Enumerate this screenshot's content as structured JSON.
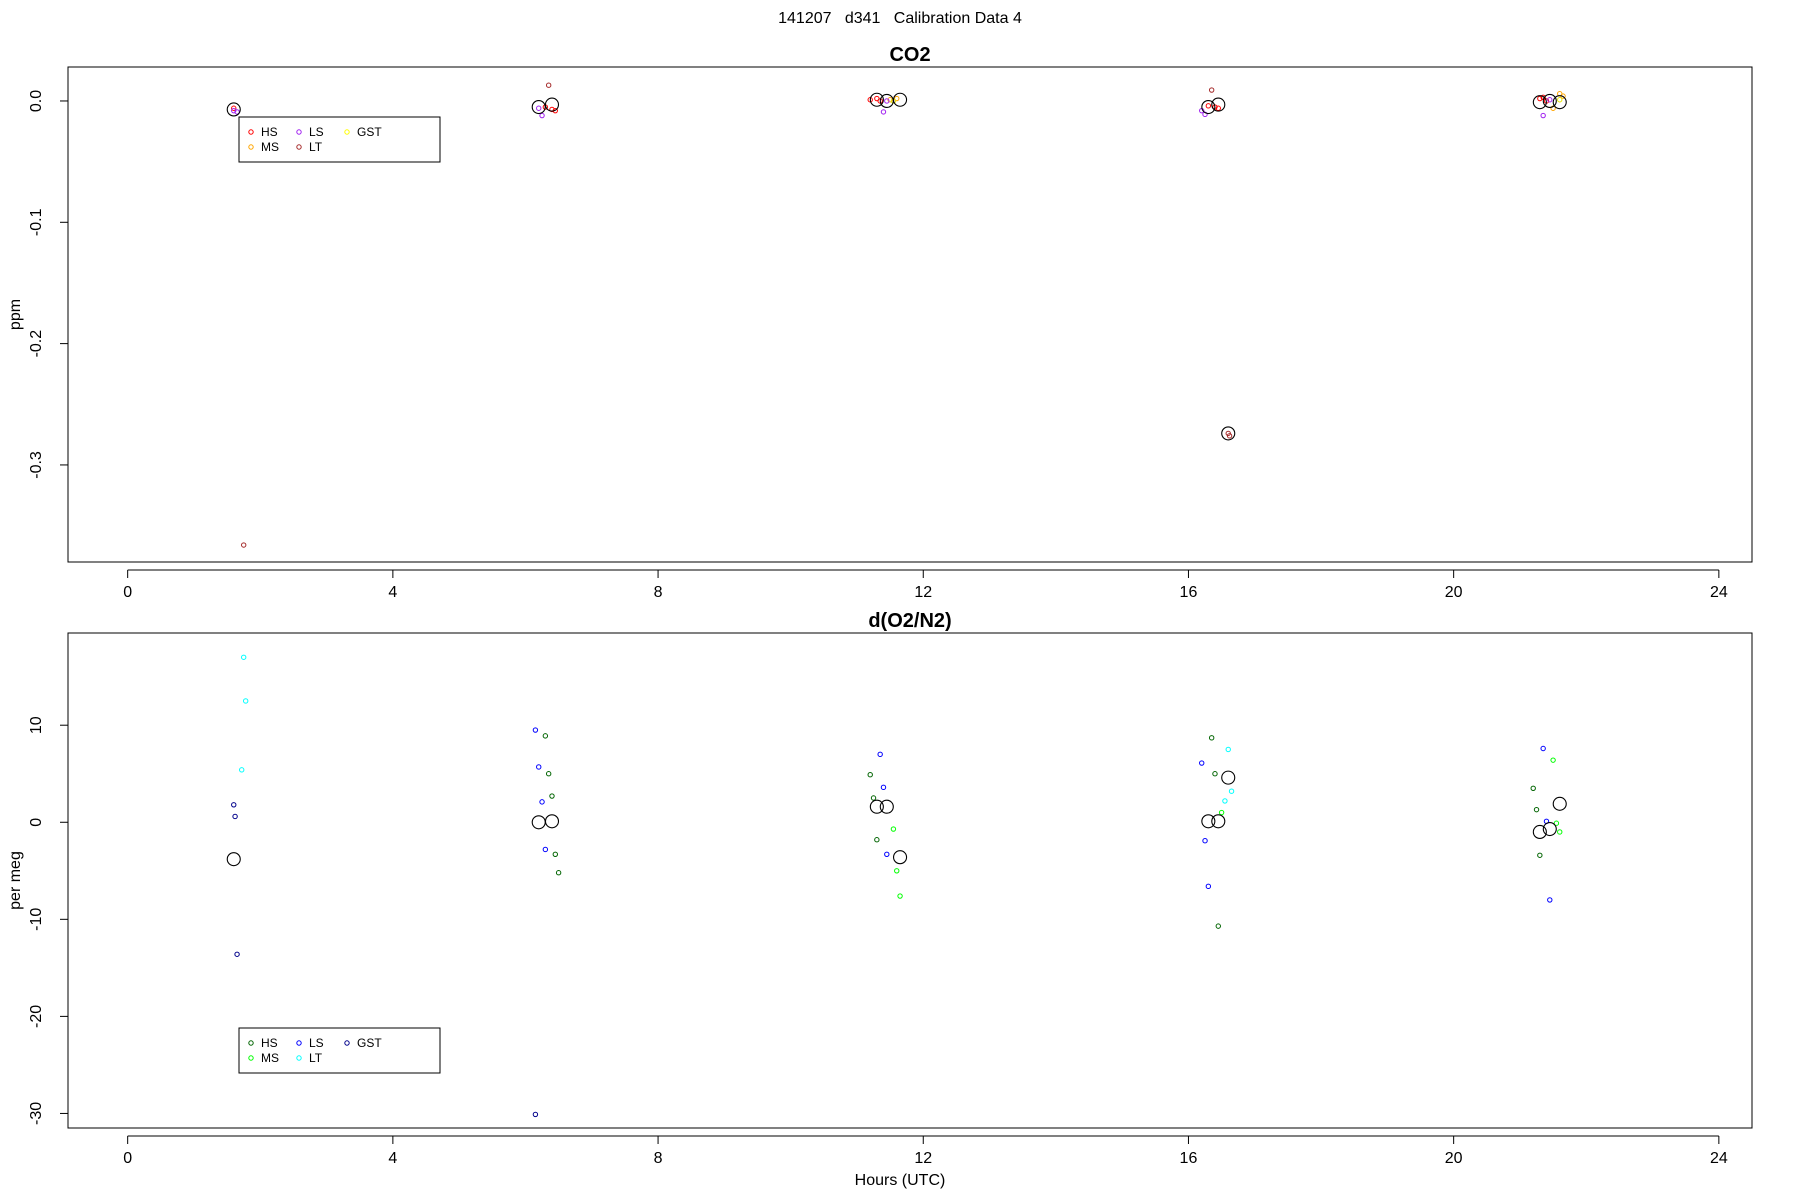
{
  "figure": {
    "title": "141207   d341   Calibration Data 4",
    "xlabel": "Hours (UTC)"
  },
  "chart_data": [
    {
      "type": "scatter",
      "title": "CO2",
      "ylabel": "ppm",
      "xlim": [
        -0.9,
        24.5
      ],
      "ylim": [
        -0.38,
        0.028
      ],
      "xticks": [
        0,
        4,
        8,
        12,
        16,
        20,
        24
      ],
      "yticks": [
        0.0,
        -0.1,
        -0.2,
        -0.3
      ],
      "ytick_labels": [
        "0.0",
        "-0.1",
        "-0.2",
        "-0.3"
      ],
      "legend": {
        "position": "upper-left",
        "entries": [
          {
            "name": "HS",
            "color": "#ff0000"
          },
          {
            "name": "MS",
            "color": "#ffa500"
          },
          {
            "name": "LS",
            "color": "#a020f0"
          },
          {
            "name": "LT",
            "color": "#a52a2a"
          },
          {
            "name": "GST",
            "color": "#ffff00"
          }
        ]
      },
      "series": [
        {
          "name": "HS",
          "color": "#ff0000",
          "x": [
            1.6,
            6.3,
            6.4,
            6.45,
            11.2,
            11.3,
            11.35,
            16.3,
            16.4,
            16.45,
            21.3,
            21.35,
            21.4
          ],
          "y": [
            -0.006,
            -0.005,
            -0.007,
            -0.008,
            0.001,
            0.002,
            0.0,
            -0.004,
            -0.005,
            -0.006,
            0.002,
            0.003,
            0.0
          ]
        },
        {
          "name": "MS",
          "color": "#ffa500",
          "x": [
            11.5,
            11.6,
            21.5,
            21.6,
            21.65
          ],
          "y": [
            0.001,
            0.002,
            -0.006,
            0.006,
            0.004
          ]
        },
        {
          "name": "LS",
          "color": "#a020f0",
          "x": [
            1.6,
            1.65,
            6.2,
            6.25,
            11.4,
            11.45,
            16.2,
            16.25,
            21.35,
            21.45
          ],
          "y": [
            -0.008,
            -0.009,
            -0.006,
            -0.012,
            -0.009,
            0.0,
            -0.008,
            -0.011,
            -0.012,
            0.001
          ]
        },
        {
          "name": "LT",
          "color": "#a52a2a",
          "x": [
            1.75,
            6.35,
            16.35,
            16.6,
            16.62
          ],
          "y": [
            -0.366,
            0.013,
            0.009,
            -0.274,
            -0.276
          ]
        },
        {
          "name": "GST",
          "color": "#e6e600",
          "x": [
            11.55,
            21.6
          ],
          "y": [
            0.0,
            0.001
          ]
        },
        {
          "name": "",
          "color": "#000000",
          "marker": "large-open-circle",
          "x": [
            1.6,
            6.2,
            6.4,
            11.3,
            11.45,
            11.65,
            16.3,
            16.45,
            16.6,
            21.3,
            21.45,
            21.6
          ],
          "y": [
            -0.007,
            -0.005,
            -0.003,
            0.001,
            0.0,
            0.001,
            -0.005,
            -0.003,
            -0.274,
            -0.001,
            0.0,
            -0.001
          ]
        }
      ]
    },
    {
      "type": "scatter",
      "title": "d(O2/N2)",
      "ylabel": "per meg",
      "xlim": [
        -0.9,
        24.5
      ],
      "ylim": [
        -31.5,
        19.5
      ],
      "xticks": [
        0,
        4,
        8,
        12,
        16,
        20,
        24
      ],
      "yticks": [
        10,
        0,
        -10,
        -20,
        -30
      ],
      "ytick_labels": [
        "10",
        "0",
        "-10",
        "-20",
        "-30"
      ],
      "legend": {
        "position": "lower-left",
        "entries": [
          {
            "name": "HS",
            "color": "#006400"
          },
          {
            "name": "MS",
            "color": "#00ff00"
          },
          {
            "name": "LS",
            "color": "#0000ff"
          },
          {
            "name": "LT",
            "color": "#00ffff"
          },
          {
            "name": "GST",
            "color": "#00008b"
          }
        ]
      },
      "series": [
        {
          "name": "HS",
          "color": "#006400",
          "x": [
            6.3,
            6.35,
            6.4,
            6.45,
            6.5,
            11.2,
            11.25,
            11.3,
            16.35,
            16.4,
            16.45,
            21.2,
            21.25,
            21.3
          ],
          "y": [
            8.9,
            5.0,
            2.7,
            -3.3,
            -5.2,
            4.9,
            2.5,
            -1.8,
            8.7,
            5.0,
            -10.7,
            3.5,
            1.3,
            -3.4
          ]
        },
        {
          "name": "MS",
          "color": "#00ff00",
          "x": [
            11.55,
            11.6,
            11.65,
            16.5,
            21.5,
            21.55,
            21.6
          ],
          "y": [
            -0.7,
            -5.0,
            -7.6,
            1.0,
            6.4,
            -0.1,
            -1.0
          ]
        },
        {
          "name": "LS",
          "color": "#0000ff",
          "x": [
            6.15,
            6.2,
            6.25,
            6.3,
            11.35,
            11.4,
            11.45,
            16.2,
            16.25,
            16.3,
            21.35,
            21.4,
            21.45
          ],
          "y": [
            9.5,
            5.7,
            2.1,
            -2.8,
            7.0,
            3.6,
            -3.3,
            6.1,
            -1.9,
            -6.6,
            7.6,
            0.1,
            -8.0
          ]
        },
        {
          "name": "LT",
          "color": "#00ffff",
          "x": [
            1.75,
            1.78,
            1.72,
            16.6,
            16.65,
            16.55
          ],
          "y": [
            17.0,
            12.5,
            5.4,
            7.5,
            3.2,
            2.2
          ]
        },
        {
          "name": "GST",
          "color": "#00008b",
          "x": [
            1.6,
            1.62,
            1.65,
            6.15
          ],
          "y": [
            1.8,
            0.6,
            -13.6,
            -30.1
          ]
        },
        {
          "name": "",
          "color": "#000000",
          "marker": "large-open-circle",
          "x": [
            1.6,
            6.2,
            6.4,
            11.3,
            11.45,
            11.65,
            16.3,
            16.45,
            16.6,
            21.3,
            21.45,
            21.6
          ],
          "y": [
            -3.8,
            0.0,
            0.1,
            1.6,
            1.6,
            -3.6,
            0.1,
            0.1,
            4.6,
            -1.0,
            -0.7,
            1.9
          ]
        }
      ]
    }
  ]
}
